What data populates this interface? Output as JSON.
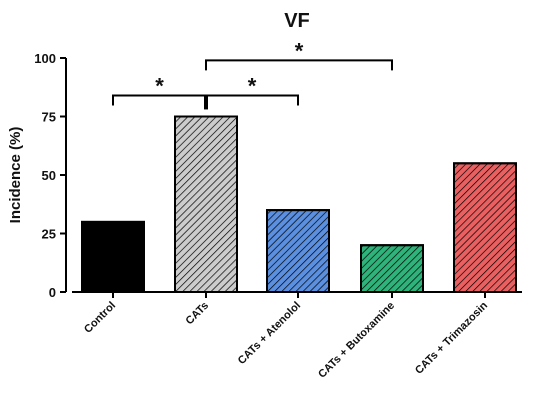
{
  "chart_data": {
    "type": "bar",
    "title": "VF",
    "xlabel": "",
    "ylabel": "Incidence (%)",
    "ylim": [
      0,
      100
    ],
    "yticks": [
      0,
      25,
      50,
      75,
      100
    ],
    "categories": [
      "Control",
      "CATs",
      "CATs + Atenolol",
      "CATs + Butoxamine",
      "CATs + Trimazosin"
    ],
    "values": [
      30,
      75,
      35,
      20,
      55
    ],
    "bar_colors": [
      "#000000",
      "#cccccc",
      "#5b8fe0",
      "#2eb37a",
      "#ea6060"
    ],
    "bar_hatch": [
      false,
      true,
      true,
      true,
      true
    ],
    "significance": [
      {
        "from": 0,
        "to": 1,
        "label": "*",
        "level": 84
      },
      {
        "from": 1,
        "to": 2,
        "label": "*",
        "level": 84
      },
      {
        "from": 1,
        "to": 3,
        "label": "*",
        "level": 99
      }
    ]
  }
}
